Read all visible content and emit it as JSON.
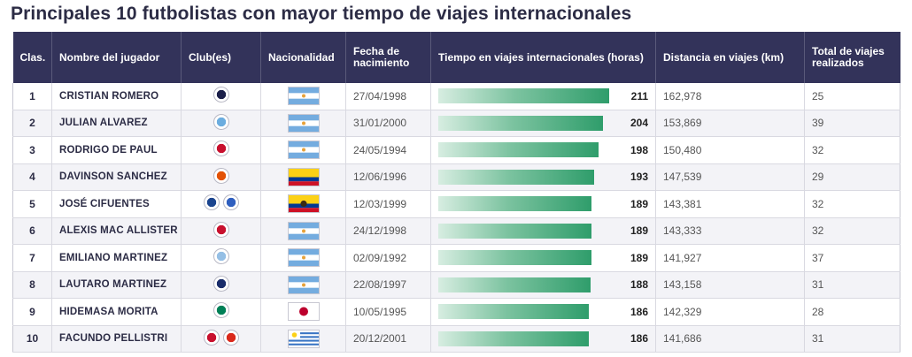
{
  "title": "Principales 10 futbolistas con mayor tiempo de viajes internacionales",
  "headers": {
    "rank": "Clas.",
    "name": "Nombre del jugador",
    "club": "Club(es)",
    "nationality": "Nacionalidad",
    "birth": "Fecha de nacimiento",
    "hours": "Tiempo en viajes internacionales (horas)",
    "distance": "Distancia en viajes (km)",
    "trips": "Total de viajes realizados"
  },
  "colors": {
    "header_bg": "#33335a",
    "bar_start": "#d7ede1",
    "bar_end": "#2f9d6b"
  },
  "chart_data": {
    "type": "table",
    "title": "Principales 10 futbolistas con mayor tiempo de viajes internacionales",
    "bar_column": "Tiempo en viajes internacionales (horas)",
    "bar_max": 211,
    "rows": [
      {
        "rank": "1",
        "name": "CRISTIAN ROMERO",
        "clubs": [
          "tottenham-crest"
        ],
        "flag": "argentina",
        "birth": "27/04/1998",
        "hours": 211,
        "distance": "162,978",
        "trips": "25"
      },
      {
        "rank": "2",
        "name": "JULIAN ALVAREZ",
        "clubs": [
          "manchester-city-crest"
        ],
        "flag": "argentina",
        "birth": "31/01/2000",
        "hours": 204,
        "distance": "153,869",
        "trips": "39"
      },
      {
        "rank": "3",
        "name": "RODRIGO DE PAUL",
        "clubs": [
          "atletico-madrid-crest"
        ],
        "flag": "argentina",
        "birth": "24/05/1994",
        "hours": 198,
        "distance": "150,480",
        "trips": "32"
      },
      {
        "rank": "4",
        "name": "DAVINSON SANCHEZ",
        "clubs": [
          "galatasaray-crest"
        ],
        "flag": "colombia",
        "birth": "12/06/1996",
        "hours": 193,
        "distance": "147,539",
        "trips": "29"
      },
      {
        "rank": "5",
        "name": "JOSÉ CIFUENTES",
        "clubs": [
          "rangers-crest",
          "cruzeiro-crest"
        ],
        "flag": "ecuador",
        "birth": "12/03/1999",
        "hours": 189,
        "distance": "143,381",
        "trips": "32"
      },
      {
        "rank": "6",
        "name": "ALEXIS MAC ALLISTER",
        "clubs": [
          "liverpool-crest"
        ],
        "flag": "argentina",
        "birth": "24/12/1998",
        "hours": 189,
        "distance": "143,333",
        "trips": "32"
      },
      {
        "rank": "7",
        "name": "EMILIANO MARTINEZ",
        "clubs": [
          "aston-villa-crest"
        ],
        "flag": "argentina",
        "birth": "02/09/1992",
        "hours": 189,
        "distance": "141,927",
        "trips": "37"
      },
      {
        "rank": "8",
        "name": "LAUTARO MARTINEZ",
        "clubs": [
          "inter-crest"
        ],
        "flag": "argentina",
        "birth": "22/08/1997",
        "hours": 188,
        "distance": "143,158",
        "trips": "31"
      },
      {
        "rank": "9",
        "name": "HIDEMASA MORITA",
        "clubs": [
          "sporting-crest"
        ],
        "flag": "japan",
        "birth": "10/05/1995",
        "hours": 186,
        "distance": "142,329",
        "trips": "28"
      },
      {
        "rank": "10",
        "name": "FACUNDO PELLISTRI",
        "clubs": [
          "granada-crest",
          "manchester-united-crest"
        ],
        "flag": "uruguay",
        "birth": "20/12/2001",
        "hours": 186,
        "distance": "141,686",
        "trips": "31"
      }
    ]
  }
}
